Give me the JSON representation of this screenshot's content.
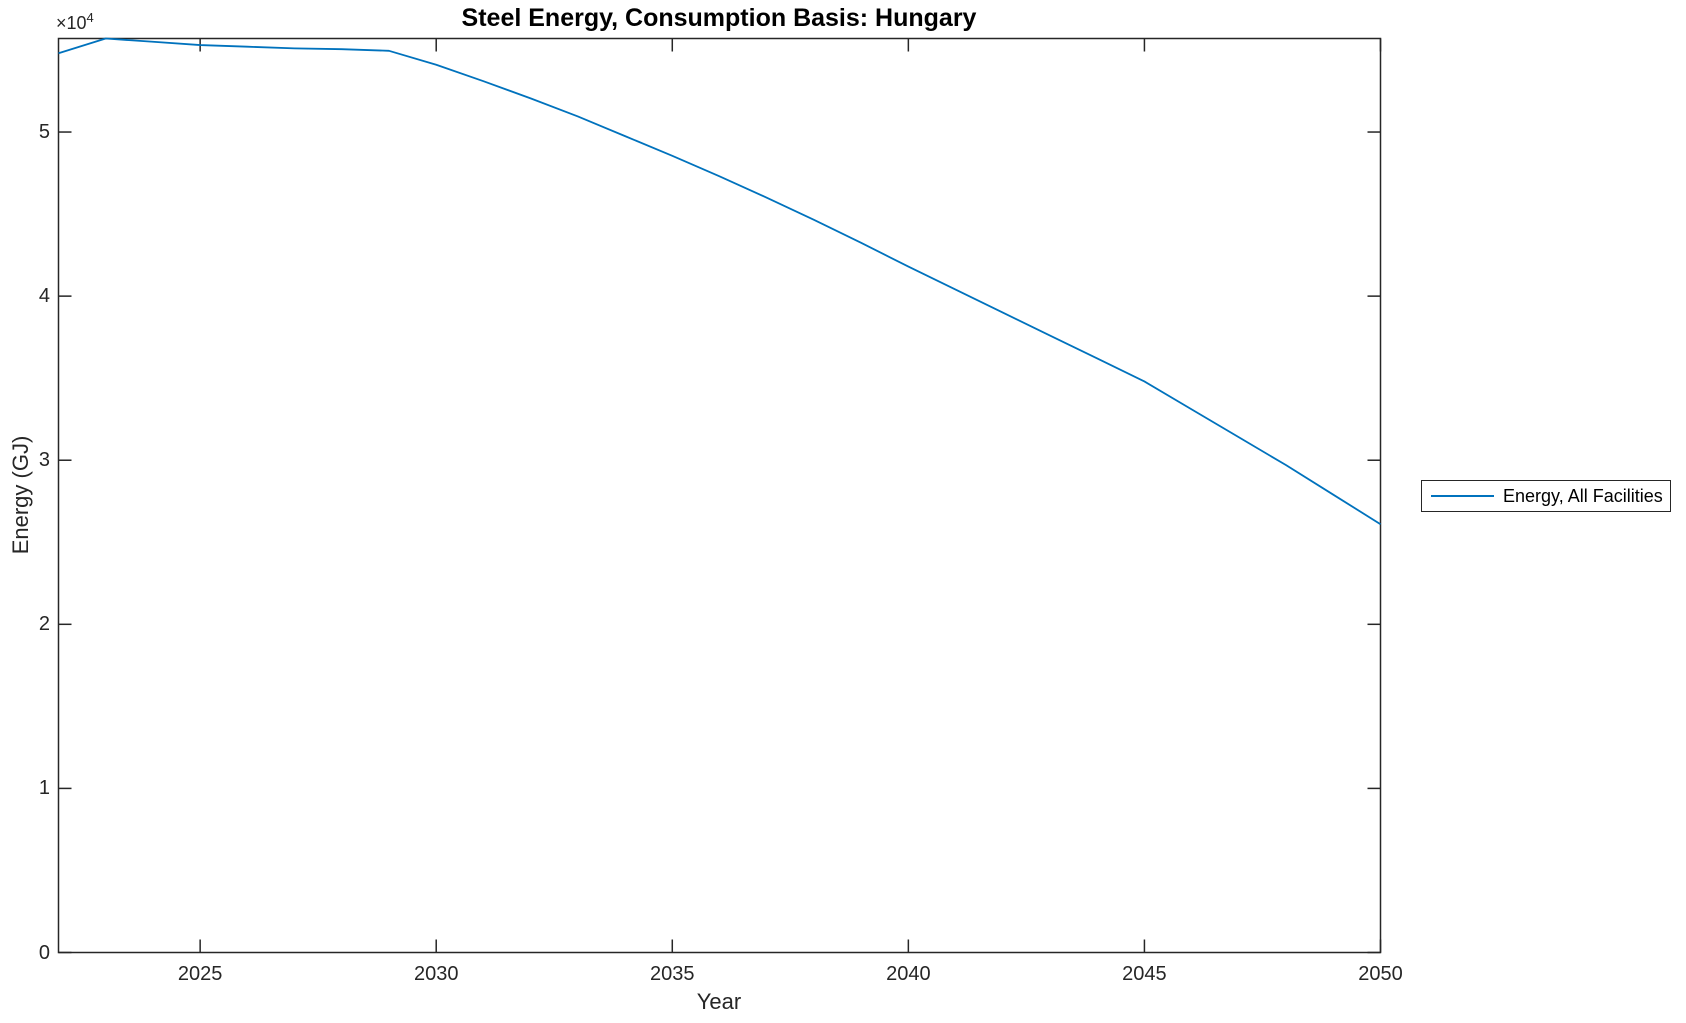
{
  "figure": {
    "background": "#ffffff"
  },
  "axis_decor": {
    "multiplier_base": "×10",
    "multiplier_exponent": "4"
  },
  "colors": {
    "axis": "#262626",
    "tick_text": "#262626",
    "title_text": "#000000",
    "series_blue": "#0072BD"
  },
  "chart_data": {
    "type": "line",
    "title": "Steel Energy, Consumption Basis: Hungary",
    "xlabel": "Year",
    "ylabel": "Energy (GJ)",
    "y_axis_multiplier": "×10⁴",
    "xlim": [
      2022,
      2050
    ],
    "ylim": [
      0,
      55700
    ],
    "xticks": [
      2025,
      2030,
      2035,
      2040,
      2045,
      2050
    ],
    "xtick_labels": [
      "2025",
      "2030",
      "2035",
      "2040",
      "2045",
      "2050"
    ],
    "yticks": [
      0,
      10000,
      20000,
      30000,
      40000,
      50000
    ],
    "ytick_labels": [
      "0",
      "1",
      "2",
      "3",
      "4",
      "5"
    ],
    "grid": false,
    "legend": {
      "position": "right-outside-middle",
      "entries": [
        {
          "label": "Energy, All Facilities",
          "color": "#0072BD"
        }
      ]
    },
    "series": [
      {
        "name": "Energy, All Facilities",
        "color": "#0072BD",
        "x": [
          2022,
          2023,
          2024,
          2025,
          2026,
          2027,
          2028,
          2029,
          2030,
          2031,
          2032,
          2033,
          2034,
          2035,
          2036,
          2037,
          2038,
          2039,
          2040,
          2041,
          2042,
          2043,
          2044,
          2045,
          2046,
          2047,
          2048,
          2049,
          2050
        ],
        "y": [
          54800,
          55700,
          55500,
          55300,
          55200,
          55100,
          55050,
          54950,
          54100,
          53100,
          52050,
          50950,
          49750,
          48550,
          47300,
          46000,
          44650,
          43250,
          41800,
          40400,
          39000,
          37600,
          36200,
          34800,
          33100,
          31400,
          29700,
          27900,
          26100
        ]
      }
    ]
  }
}
